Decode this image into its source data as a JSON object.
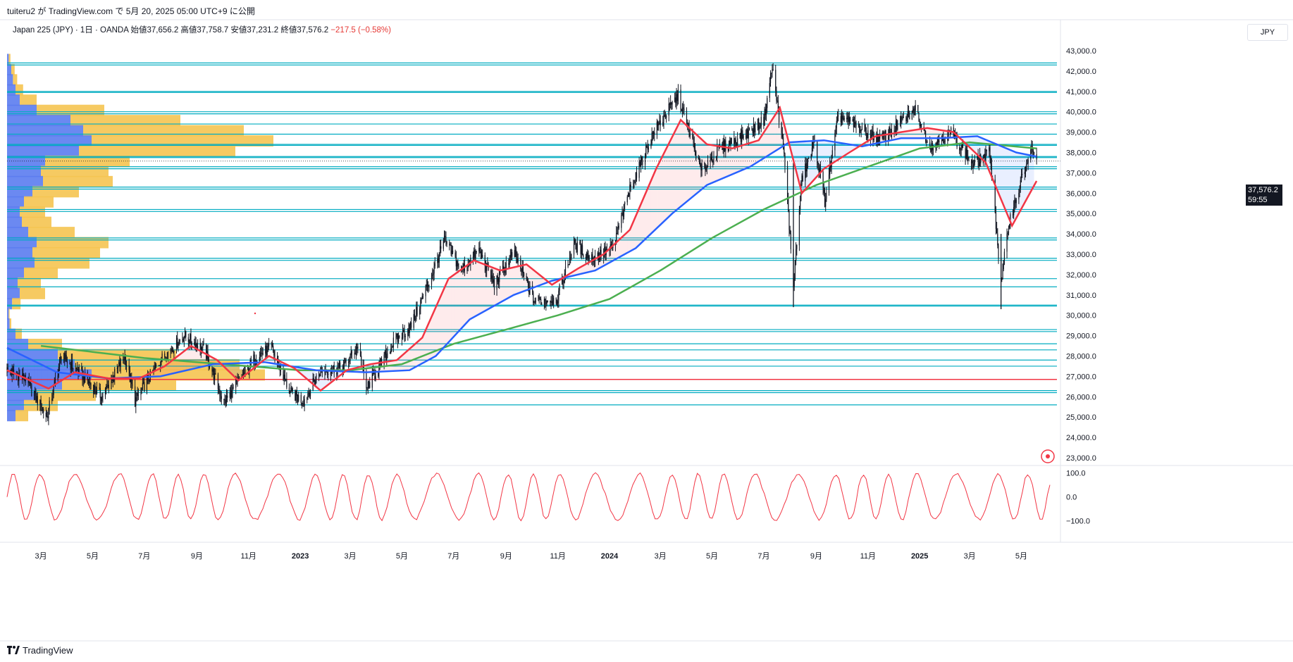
{
  "header": {
    "published_by": "tuiteru2 が TradingView.com で 5月 20, 2025 05:00 UTC+9 に公開"
  },
  "legend": {
    "text": "Japan 225 (JPY) · 1日 · OANDA  始値37,656.2  高値37,758.7  安値37,231.2  終値37,576.2",
    "change": "−217.5 (−0.58%)"
  },
  "currency_button": "JPY",
  "last_price": {
    "price": "37,576.2",
    "countdown": "59:55",
    "value": 37576.2
  },
  "footer": {
    "brand": "TradingView"
  },
  "colors": {
    "candle": "#131722",
    "ma_red": "#f23645",
    "ma_blue": "#2962ff",
    "ma_green": "#4caf50",
    "hline": "#00acc1",
    "redline": "#f23645",
    "vp_blue": "#5b7cf0",
    "vp_yellow": "#f5c451",
    "osc": "#f23645"
  },
  "chart_data": {
    "type": "candlestick",
    "symbol": "Japan 225 (JPY)",
    "timeframe": "1日",
    "ylim": [
      22500,
      43500
    ],
    "y_ticks": [
      "43,000.0",
      "42,000.0",
      "41,000.0",
      "40,000.0",
      "39,000.0",
      "38,000.0",
      "37,000.0",
      "36,000.0",
      "35,000.0",
      "34,000.0",
      "33,000.0",
      "32,000.0",
      "31,000.0",
      "30,000.0",
      "29,000.0",
      "28,000.0",
      "27,000.0",
      "26,000.0",
      "25,000.0",
      "24,000.0",
      "23,000.0"
    ],
    "y_tick_values": [
      43000,
      42000,
      41000,
      40000,
      39000,
      38000,
      37000,
      36000,
      35000,
      34000,
      33000,
      32000,
      31000,
      30000,
      29000,
      28000,
      27000,
      26000,
      25000,
      24000,
      23000
    ],
    "x_labels": [
      "3月",
      "5月",
      "7月",
      "9月",
      "11月",
      "2023",
      "3月",
      "5月",
      "7月",
      "9月",
      "11月",
      "2024",
      "3月",
      "5月",
      "7月",
      "9月",
      "11月",
      "2025",
      "3月",
      "5月"
    ],
    "x_label_bold": [
      "2023",
      "2024",
      "2025"
    ],
    "x_label_dates": [
      "2022-03-01",
      "2022-05-01",
      "2022-07-01",
      "2022-09-01",
      "2022-11-01",
      "2023-01-01",
      "2023-03-01",
      "2023-05-01",
      "2023-07-01",
      "2023-09-01",
      "2023-11-01",
      "2024-01-01",
      "2024-03-01",
      "2024-05-01",
      "2024-07-01",
      "2024-09-01",
      "2024-11-01",
      "2025-01-01",
      "2025-03-01",
      "2025-05-01"
    ],
    "price_path": [
      [
        "2022-01-20",
        27300
      ],
      [
        "2022-02-10",
        26900
      ],
      [
        "2022-03-08",
        25000
      ],
      [
        "2022-03-25",
        28000
      ],
      [
        "2022-04-20",
        27000
      ],
      [
        "2022-05-12",
        26000
      ],
      [
        "2022-06-08",
        28000
      ],
      [
        "2022-06-20",
        25800
      ],
      [
        "2022-07-20",
        27800
      ],
      [
        "2022-08-17",
        29000
      ],
      [
        "2022-09-10",
        28300
      ],
      [
        "2022-10-03",
        25700
      ],
      [
        "2022-11-10",
        28000
      ],
      [
        "2022-11-28",
        28400
      ],
      [
        "2022-12-20",
        26200
      ],
      [
        "2023-01-05",
        25800
      ],
      [
        "2023-01-25",
        27300
      ],
      [
        "2023-02-20",
        27400
      ],
      [
        "2023-03-10",
        28500
      ],
      [
        "2023-03-20",
        26400
      ],
      [
        "2023-04-20",
        28600
      ],
      [
        "2023-05-12",
        29500
      ],
      [
        "2023-06-10",
        32500
      ],
      [
        "2023-06-20",
        33700
      ],
      [
        "2023-07-10",
        32200
      ],
      [
        "2023-07-31",
        33200
      ],
      [
        "2023-08-18",
        31500
      ],
      [
        "2023-09-10",
        33100
      ],
      [
        "2023-10-04",
        30700
      ],
      [
        "2023-10-31",
        30800
      ],
      [
        "2023-11-20",
        33500
      ],
      [
        "2023-12-10",
        32800
      ],
      [
        "2024-01-05",
        33300
      ],
      [
        "2024-01-25",
        36200
      ],
      [
        "2024-02-22",
        39000
      ],
      [
        "2024-03-22",
        40800
      ],
      [
        "2024-04-18",
        37100
      ],
      [
        "2024-05-10",
        38200
      ],
      [
        "2024-06-10",
        38900
      ],
      [
        "2024-07-01",
        39600
      ],
      [
        "2024-07-11",
        42200
      ],
      [
        "2024-07-25",
        37900
      ],
      [
        "2024-08-05",
        31500
      ],
      [
        "2024-08-15",
        36700
      ],
      [
        "2024-08-30",
        38500
      ],
      [
        "2024-09-11",
        35600
      ],
      [
        "2024-09-27",
        39800
      ],
      [
        "2024-10-10",
        39500
      ],
      [
        "2024-11-15",
        38600
      ],
      [
        "2024-12-27",
        40100
      ],
      [
        "2025-01-13",
        38300
      ],
      [
        "2025-02-07",
        39000
      ],
      [
        "2025-03-05",
        37400
      ],
      [
        "2025-03-25",
        38000
      ],
      [
        "2025-04-07",
        31500
      ],
      [
        "2025-04-16",
        34500
      ],
      [
        "2025-05-02",
        36800
      ],
      [
        "2025-05-13",
        38100
      ],
      [
        "2025-05-19",
        37576
      ]
    ],
    "ma_red": [
      [
        "2022-01-20",
        27300
      ],
      [
        "2022-03-10",
        26400
      ],
      [
        "2022-04-10",
        27200
      ],
      [
        "2022-05-20",
        26900
      ],
      [
        "2022-06-25",
        26900
      ],
      [
        "2022-07-25",
        27500
      ],
      [
        "2022-08-25",
        28500
      ],
      [
        "2022-09-25",
        27800
      ],
      [
        "2022-10-20",
        26800
      ],
      [
        "2022-11-25",
        28000
      ],
      [
        "2022-12-25",
        27400
      ],
      [
        "2023-01-25",
        26300
      ],
      [
        "2023-02-25",
        27300
      ],
      [
        "2023-03-25",
        27600
      ],
      [
        "2023-04-25",
        27800
      ],
      [
        "2023-05-25",
        28900
      ],
      [
        "2023-06-25",
        31800
      ],
      [
        "2023-07-25",
        32700
      ],
      [
        "2023-08-25",
        32200
      ],
      [
        "2023-09-25",
        32500
      ],
      [
        "2023-10-25",
        31500
      ],
      [
        "2023-11-25",
        32300
      ],
      [
        "2023-12-25",
        33000
      ],
      [
        "2024-01-25",
        34200
      ],
      [
        "2024-02-25",
        37200
      ],
      [
        "2024-03-25",
        39600
      ],
      [
        "2024-04-25",
        38400
      ],
      [
        "2024-05-25",
        38200
      ],
      [
        "2024-06-25",
        38600
      ],
      [
        "2024-07-20",
        40200
      ],
      [
        "2024-08-15",
        36000
      ],
      [
        "2024-09-10",
        37200
      ],
      [
        "2024-10-10",
        38000
      ],
      [
        "2024-11-10",
        38800
      ],
      [
        "2024-12-10",
        39000
      ],
      [
        "2025-01-10",
        39200
      ],
      [
        "2025-02-10",
        39000
      ],
      [
        "2025-03-20",
        37500
      ],
      [
        "2025-04-20",
        34400
      ],
      [
        "2025-05-19",
        36600
      ]
    ],
    "ma_blue": [
      [
        "2022-01-20",
        28400
      ],
      [
        "2022-03-20",
        27200
      ],
      [
        "2022-05-20",
        26900
      ],
      [
        "2022-07-20",
        27000
      ],
      [
        "2022-09-20",
        27600
      ],
      [
        "2022-11-20",
        27700
      ],
      [
        "2023-01-20",
        27300
      ],
      [
        "2023-03-20",
        27200
      ],
      [
        "2023-05-10",
        27300
      ],
      [
        "2023-06-10",
        28000
      ],
      [
        "2023-07-20",
        29800
      ],
      [
        "2023-09-10",
        31000
      ],
      [
        "2023-10-25",
        31700
      ],
      [
        "2023-12-15",
        32200
      ],
      [
        "2024-02-01",
        33300
      ],
      [
        "2024-03-15",
        35000
      ],
      [
        "2024-04-25",
        36400
      ],
      [
        "2024-06-15",
        37300
      ],
      [
        "2024-07-31",
        38500
      ],
      [
        "2024-09-10",
        38600
      ],
      [
        "2024-10-25",
        38300
      ],
      [
        "2024-12-10",
        38700
      ],
      [
        "2025-01-25",
        38700
      ],
      [
        "2025-03-10",
        38800
      ],
      [
        "2025-04-25",
        38000
      ],
      [
        "2025-05-19",
        37800
      ]
    ],
    "ma_green": [
      [
        "2022-03-01",
        28500
      ],
      [
        "2022-05-01",
        28200
      ],
      [
        "2022-07-01",
        27900
      ],
      [
        "2022-09-01",
        27700
      ],
      [
        "2022-11-01",
        27500
      ],
      [
        "2023-01-01",
        27300
      ],
      [
        "2023-03-01",
        27300
      ],
      [
        "2023-05-01",
        27600
      ],
      [
        "2023-07-01",
        28600
      ],
      [
        "2023-09-01",
        29300
      ],
      [
        "2023-11-01",
        30000
      ],
      [
        "2024-01-01",
        30800
      ],
      [
        "2024-03-01",
        32200
      ],
      [
        "2024-05-01",
        33800
      ],
      [
        "2024-07-01",
        35200
      ],
      [
        "2024-09-01",
        36400
      ],
      [
        "2024-11-01",
        37300
      ],
      [
        "2025-01-01",
        38200
      ],
      [
        "2025-03-01",
        38500
      ],
      [
        "2025-05-19",
        38200
      ]
    ],
    "horizontal_levels": [
      42400,
      42300,
      41000,
      40950,
      40000,
      39900,
      39400,
      38900,
      38400,
      38350,
      37800,
      37750,
      37300,
      37200,
      36300,
      36200,
      35200,
      35100,
      33800,
      33700,
      32800,
      32700,
      31800,
      31400,
      30500,
      30450,
      29300,
      29200,
      28600,
      28300,
      27800,
      27500,
      26300,
      26200,
      25600
    ],
    "red_level": 26850,
    "volume_profile_levels": [
      {
        "price": 42500,
        "blue": 4,
        "yellow": 4
      },
      {
        "price": 42000,
        "blue": 10,
        "yellow": 8
      },
      {
        "price": 41500,
        "blue": 14,
        "yellow": 10
      },
      {
        "price": 41000,
        "blue": 20,
        "yellow": 18
      },
      {
        "price": 40500,
        "blue": 30,
        "yellow": 40
      },
      {
        "price": 40000,
        "blue": 70,
        "yellow": 160
      },
      {
        "price": 39500,
        "blue": 150,
        "yellow": 260
      },
      {
        "price": 39000,
        "blue": 180,
        "yellow": 380
      },
      {
        "price": 38500,
        "blue": 200,
        "yellow": 430
      },
      {
        "price": 38000,
        "blue": 170,
        "yellow": 370
      },
      {
        "price": 37500,
        "blue": 90,
        "yellow": 200
      },
      {
        "price": 37000,
        "blue": 80,
        "yellow": 160
      },
      {
        "price": 36500,
        "blue": 85,
        "yellow": 165
      },
      {
        "price": 36000,
        "blue": 60,
        "yellow": 110
      },
      {
        "price": 35500,
        "blue": 40,
        "yellow": 70
      },
      {
        "price": 35000,
        "blue": 30,
        "yellow": 60
      },
      {
        "price": 34500,
        "blue": 35,
        "yellow": 70
      },
      {
        "price": 34000,
        "blue": 50,
        "yellow": 110
      },
      {
        "price": 33500,
        "blue": 70,
        "yellow": 170
      },
      {
        "price": 33000,
        "blue": 60,
        "yellow": 160
      },
      {
        "price": 32500,
        "blue": 65,
        "yellow": 130
      },
      {
        "price": 32000,
        "blue": 40,
        "yellow": 80
      },
      {
        "price": 31500,
        "blue": 25,
        "yellow": 55
      },
      {
        "price": 31000,
        "blue": 30,
        "yellow": 60
      },
      {
        "price": 30500,
        "blue": 12,
        "yellow": 20
      },
      {
        "price": 30000,
        "blue": 4,
        "yellow": 2
      },
      {
        "price": 29500,
        "blue": 6,
        "yellow": 4
      },
      {
        "price": 29000,
        "blue": 20,
        "yellow": 15
      },
      {
        "price": 28500,
        "blue": 50,
        "yellow": 80
      },
      {
        "price": 28000,
        "blue": 120,
        "yellow": 280
      },
      {
        "price": 27500,
        "blue": 160,
        "yellow": 390
      },
      {
        "price": 27000,
        "blue": 200,
        "yellow": 410
      },
      {
        "price": 26500,
        "blue": 130,
        "yellow": 270
      },
      {
        "price": 26000,
        "blue": 70,
        "yellow": 140
      },
      {
        "price": 25500,
        "blue": 40,
        "yellow": 80
      },
      {
        "price": 25000,
        "blue": 20,
        "yellow": 30
      }
    ],
    "oscillator": {
      "y_ticks": [
        "100.0",
        "0.0",
        "−100.0"
      ],
      "y_tick_values": [
        100,
        0,
        -100
      ],
      "ylim": [
        -110,
        110
      ],
      "last_value": 50
    }
  }
}
